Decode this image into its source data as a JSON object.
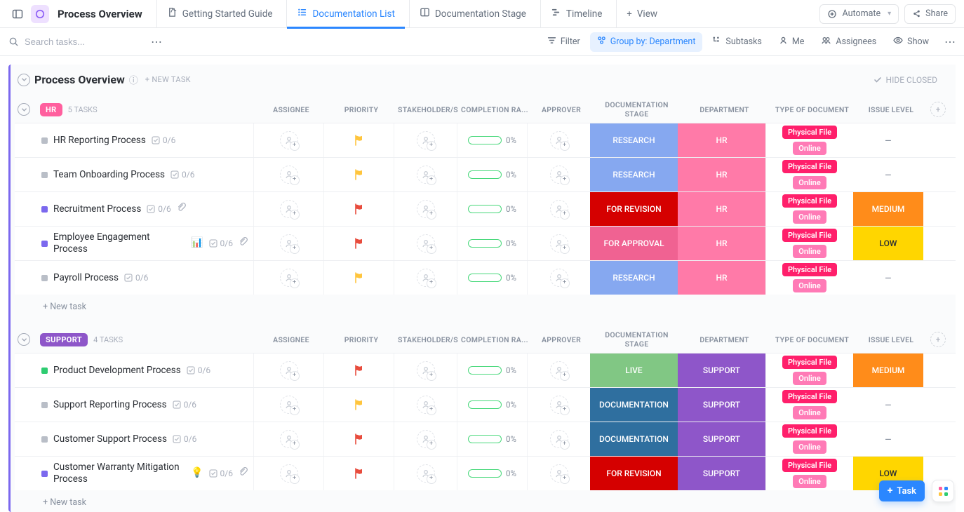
{
  "page": {
    "title": "Process Overview"
  },
  "views": [
    {
      "icon": "doc",
      "label": "Getting Started Guide",
      "active": false
    },
    {
      "icon": "list",
      "label": "Documentation List",
      "active": true
    },
    {
      "icon": "board",
      "label": "Documentation Stage",
      "active": false
    },
    {
      "icon": "timeline",
      "label": "Timeline",
      "active": false
    },
    {
      "icon": "plus",
      "label": "View",
      "active": false
    }
  ],
  "header_buttons": {
    "automate": "Automate",
    "share": "Share"
  },
  "toolbar": {
    "search_placeholder": "Search tasks...",
    "chips": [
      {
        "icon": "filter",
        "label": "Filter",
        "active": false
      },
      {
        "icon": "group",
        "label": "Group by: Department",
        "active": true
      },
      {
        "icon": "subtasks",
        "label": "Subtasks",
        "active": false
      },
      {
        "icon": "me",
        "label": "Me",
        "active": false
      },
      {
        "icon": "assignees",
        "label": "Assignees",
        "active": false
      },
      {
        "icon": "show",
        "label": "Show",
        "active": false
      }
    ]
  },
  "list": {
    "title": "Process Overview",
    "new_task_label": "+ NEW TASK",
    "hide_closed": "HIDE CLOSED"
  },
  "columns": [
    "ASSIGNEE",
    "PRIORITY",
    "STAKEHOLDER/S",
    "COMPLETION RA...",
    "APPROVER",
    "DOCUMENTATION STAGE",
    "DEPARTMENT",
    "TYPE OF DOCUMENT",
    "ISSUE LEVEL"
  ],
  "colors": {
    "flag_yellow": "#ffc53d",
    "flag_red": "#e84c3d",
    "progress_green": "#47d87a",
    "dept_hr_bg": "#ff7aa8",
    "dept_support_bg": "#8e56c9",
    "stage_research": {
      "bg": "#86a8f0",
      "label": "RESEARCH"
    },
    "stage_for_revision": {
      "bg": "#d50000",
      "label": "FOR REVISION"
    },
    "stage_for_approval": {
      "bg": "#f06292",
      "label": "FOR APPROVAL"
    },
    "stage_live": {
      "bg": "#81c784",
      "label": "LIVE"
    },
    "stage_documentation": {
      "bg": "#2f6f9f",
      "label": "DOCUMENTATION"
    },
    "issue_medium": {
      "bg": "#ff8c1a",
      "label": "MEDIUM"
    },
    "issue_low": {
      "bg": "#ffd600",
      "label": "LOW",
      "text": "#2a2e34"
    },
    "tag_physical": {
      "bg": "#ff1f6b",
      "label": "Physical File"
    },
    "tag_online": {
      "bg": "#ff7ab6",
      "label": "Online"
    },
    "status_grey": "#b9bec7",
    "status_purple": "#7b68ee",
    "status_green": "#2ecc71",
    "hr_badge": "#ff5f9e",
    "support_badge": "#8e56c9"
  },
  "groups": [
    {
      "key": "hr",
      "name": "HR",
      "count": "5 TASKS",
      "tasks": [
        {
          "name": "HR Reporting Process",
          "sub": "0/6",
          "status": "grey",
          "flag": "yellow",
          "stage": "research",
          "dept": "HR",
          "issue": null,
          "attach": false,
          "emoji": null
        },
        {
          "name": "Team Onboarding Process",
          "sub": "0/6",
          "status": "grey",
          "flag": "yellow",
          "stage": "research",
          "dept": "HR",
          "issue": null,
          "attach": false,
          "emoji": null
        },
        {
          "name": "Recruitment Process",
          "sub": "0/6",
          "status": "purple",
          "flag": "red",
          "stage": "for_revision",
          "dept": "HR",
          "issue": "medium",
          "attach": true,
          "emoji": null
        },
        {
          "name": "Employee Engagement Process",
          "sub": "0/6",
          "status": "purple",
          "flag": "red",
          "stage": "for_approval",
          "dept": "HR",
          "issue": "low",
          "attach": true,
          "emoji": "📊"
        },
        {
          "name": "Payroll Process",
          "sub": "0/6",
          "status": "grey",
          "flag": "yellow",
          "stage": "research",
          "dept": "HR",
          "issue": null,
          "attach": false,
          "emoji": null
        }
      ],
      "new_task": "+ New task"
    },
    {
      "key": "support",
      "name": "SUPPORT",
      "count": "4 TASKS",
      "tasks": [
        {
          "name": "Product Development Process",
          "sub": "0/6",
          "status": "green",
          "flag": "red",
          "stage": "live",
          "dept": "SUPPORT",
          "issue": "medium",
          "attach": false,
          "emoji": null
        },
        {
          "name": "Support Reporting Process",
          "sub": "0/6",
          "status": "grey",
          "flag": "yellow",
          "stage": "documentation",
          "dept": "SUPPORT",
          "issue": null,
          "attach": false,
          "emoji": null
        },
        {
          "name": "Customer Support Process",
          "sub": "0/6",
          "status": "grey",
          "flag": "red",
          "stage": "documentation",
          "dept": "SUPPORT",
          "issue": null,
          "attach": false,
          "emoji": null
        },
        {
          "name": "Customer Warranty Mitigation Process",
          "sub": "0/6",
          "status": "purple",
          "flag": "red",
          "stage": "for_revision",
          "dept": "SUPPORT",
          "issue": "low",
          "attach": true,
          "emoji": "💡",
          "wrap": true
        }
      ],
      "new_task": "+ New task"
    }
  ],
  "float": {
    "task_btn": "Task"
  }
}
